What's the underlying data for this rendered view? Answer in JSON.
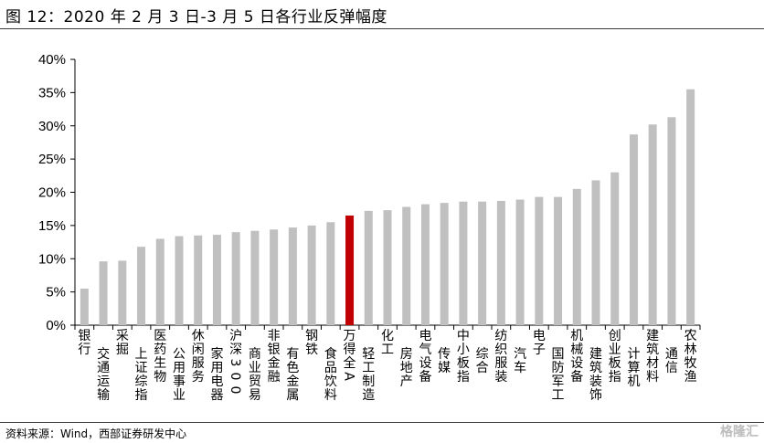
{
  "title": "图 12：2020 年 2 月 3 日-3 月 5 日各行业反弹幅度",
  "source": "资料来源：Wind，西部证券研发中心",
  "watermark": "格隆汇",
  "colors": {
    "bar": "#c0c0c0",
    "highlight": "#c00000",
    "axis": "#000000"
  },
  "chart_data": {
    "type": "bar",
    "title": "",
    "xlabel": "",
    "ylabel": "",
    "ylim": [
      0,
      40
    ],
    "yticks": [
      "0%",
      "5%",
      "10%",
      "15%",
      "20%",
      "25%",
      "30%",
      "35%",
      "40%"
    ],
    "grid": false,
    "legend": "none",
    "highlight_category": "万得全A",
    "categories": [
      "银行",
      "交通运输",
      "采掘",
      "上证综指",
      "医药生物",
      "公用事业",
      "休闲服务",
      "家用电器",
      "沪深300",
      "商业贸易",
      "非银金融",
      "有色金属",
      "钢铁",
      "食品饮料",
      "万得全A",
      "轻工制造",
      "化工",
      "房地产",
      "电气设备",
      "传媒",
      "中小板指",
      "综合",
      "纺织服装",
      "汽车",
      "电子",
      "国防军工",
      "机械设备",
      "建筑装饰",
      "创业板指",
      "计算机",
      "建筑材料",
      "通信",
      "农林牧渔"
    ],
    "values": [
      5.5,
      9.6,
      9.7,
      11.8,
      13.0,
      13.4,
      13.5,
      13.6,
      14.0,
      14.2,
      14.4,
      14.7,
      15.0,
      15.5,
      16.5,
      17.2,
      17.3,
      17.8,
      18.2,
      18.4,
      18.6,
      18.6,
      18.7,
      18.9,
      19.3,
      19.3,
      20.5,
      21.8,
      23.0,
      28.7,
      30.2,
      31.3,
      35.5
    ]
  }
}
